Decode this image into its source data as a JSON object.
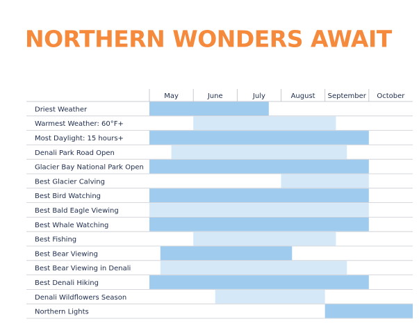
{
  "chart_data": {
    "type": "gantt",
    "title": "NORTHERN WONDERS AWAIT",
    "categories": [
      "May",
      "June",
      "July",
      "August",
      "September",
      "October"
    ],
    "xlim": [
      0,
      6
    ],
    "tasks": [
      {
        "name": "Driest Weather",
        "start": 0,
        "end": 2.72,
        "color": "#9fcbef"
      },
      {
        "name": "Warmest Weather: 60°F+",
        "start": 1,
        "end": 4.25,
        "color": "#d5e8f8"
      },
      {
        "name": "Most Daylight: 15 hours+",
        "start": 0,
        "end": 5,
        "color": "#9fcbef"
      },
      {
        "name": "Denali Park Road Open",
        "start": 0.5,
        "end": 4.5,
        "color": "#d5e8f8"
      },
      {
        "name": "Glacier Bay National Park Open",
        "start": 0,
        "end": 5,
        "color": "#9fcbef"
      },
      {
        "name": "Best Glacier Calving",
        "start": 3,
        "end": 5,
        "color": "#d5e8f8"
      },
      {
        "name": "Best Bird Watching",
        "start": 0,
        "end": 5,
        "color": "#9fcbef"
      },
      {
        "name": "Best Bald Eagle Viewing",
        "start": 0,
        "end": 5,
        "color": "#d5e8f8"
      },
      {
        "name": "Best Whale Watching",
        "start": 0,
        "end": 5,
        "color": "#9fcbef"
      },
      {
        "name": "Best Fishing",
        "start": 1,
        "end": 4.25,
        "color": "#d5e8f8"
      },
      {
        "name": "Best Bear Viewing",
        "start": 0.25,
        "end": 3.25,
        "color": "#9fcbef"
      },
      {
        "name": "Best Bear Viewing in Denali",
        "start": 0.25,
        "end": 4.5,
        "color": "#d5e8f8"
      },
      {
        "name": "Best Denali Hiking",
        "start": 0,
        "end": 5,
        "color": "#9fcbef"
      },
      {
        "name": "Denali Wildflowers Season",
        "start": 1.5,
        "end": 4,
        "color": "#d5e8f8"
      },
      {
        "name": "Northern Lights",
        "start": 4,
        "end": 6,
        "color": "#9fcbef"
      }
    ]
  }
}
